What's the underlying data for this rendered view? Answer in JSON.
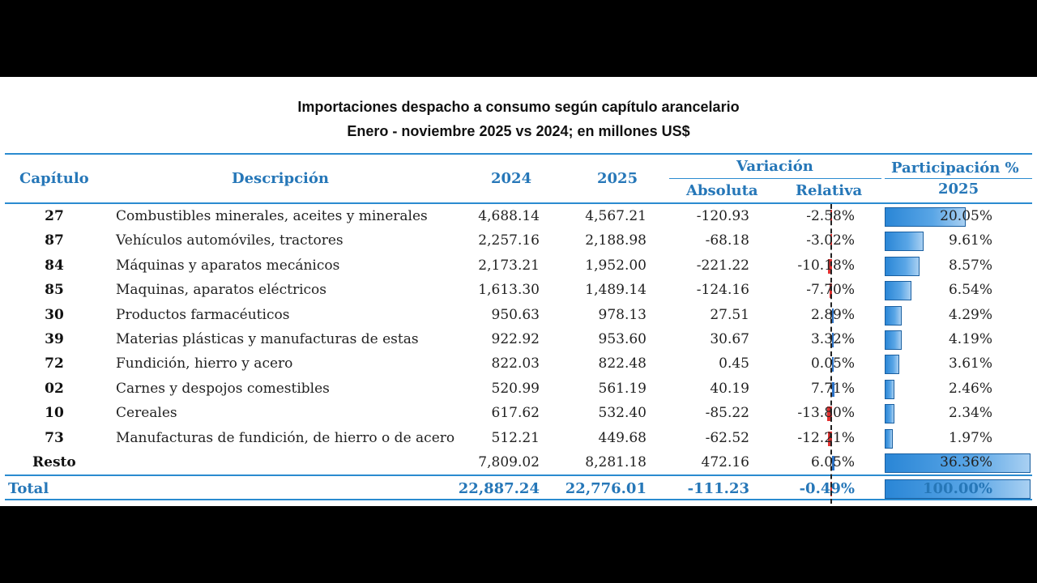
{
  "title_line1": "Importaciones despacho a consumo según capítulo arancelario",
  "title_line2": "Enero - noviembre 2025 vs 2024; en millones US$",
  "headers": {
    "capitulo": "Capítulo",
    "descripcion": "Descripción",
    "y2024": "2024",
    "y2025": "2025",
    "variacion": "Variación",
    "absoluta": "Absoluta",
    "relativa": "Relativa",
    "participacion": "Participación %",
    "participacion_year": "2025"
  },
  "rows": [
    {
      "cap": "27",
      "desc": "Combustibles minerales, aceites y minerales",
      "v2024": "4,688.14",
      "v2025": "4,567.21",
      "abs": "-120.93",
      "rel": "-2.58%",
      "rel_value": -2.58,
      "par": "20.05%",
      "par_value": 20.05
    },
    {
      "cap": "87",
      "desc": "Vehículos automóviles, tractores",
      "v2024": "2,257.16",
      "v2025": "2,188.98",
      "abs": "-68.18",
      "rel": "-3.02%",
      "rel_value": -3.02,
      "par": "9.61%",
      "par_value": 9.61
    },
    {
      "cap": "84",
      "desc": "Máquinas y aparatos mecánicos",
      "v2024": "2,173.21",
      "v2025": "1,952.00",
      "abs": "-221.22",
      "rel": "-10.18%",
      "rel_value": -10.18,
      "par": "8.57%",
      "par_value": 8.57
    },
    {
      "cap": "85",
      "desc": "Maquinas, aparatos eléctricos",
      "v2024": "1,613.30",
      "v2025": "1,489.14",
      "abs": "-124.16",
      "rel": "-7.70%",
      "rel_value": -7.7,
      "par": "6.54%",
      "par_value": 6.54
    },
    {
      "cap": "30",
      "desc": "Productos farmacéuticos",
      "v2024": "950.63",
      "v2025": "978.13",
      "abs": "27.51",
      "rel": "2.89%",
      "rel_value": 2.89,
      "par": "4.29%",
      "par_value": 4.29
    },
    {
      "cap": "39",
      "desc": "Materias plásticas y manufacturas de estas",
      "v2024": "922.92",
      "v2025": "953.60",
      "abs": "30.67",
      "rel": "3.32%",
      "rel_value": 3.32,
      "par": "4.19%",
      "par_value": 4.19
    },
    {
      "cap": "72",
      "desc": "Fundición, hierro y acero",
      "v2024": "822.03",
      "v2025": "822.48",
      "abs": "0.45",
      "rel": "0.05%",
      "rel_value": 0.05,
      "par": "3.61%",
      "par_value": 3.61
    },
    {
      "cap": "02",
      "desc": "Carnes y despojos comestibles",
      "v2024": "520.99",
      "v2025": "561.19",
      "abs": "40.19",
      "rel": "7.71%",
      "rel_value": 7.71,
      "par": "2.46%",
      "par_value": 2.46
    },
    {
      "cap": "10",
      "desc": "Cereales",
      "v2024": "617.62",
      "v2025": "532.40",
      "abs": "-85.22",
      "rel": "-13.80%",
      "rel_value": -13.8,
      "par": "2.34%",
      "par_value": 2.34
    },
    {
      "cap": "73",
      "desc": "Manufacturas de fundición, de hierro o de acero",
      "v2024": "512.21",
      "v2025": "449.68",
      "abs": "-62.52",
      "rel": "-12.21%",
      "rel_value": -12.21,
      "par": "1.97%",
      "par_value": 1.97
    },
    {
      "cap": "Resto",
      "desc": "",
      "v2024": "7,809.02",
      "v2025": "8,281.18",
      "abs": "472.16",
      "rel": "6.05%",
      "rel_value": 6.05,
      "par": "36.36%",
      "par_value": 36.36
    }
  ],
  "total": {
    "cap": "Total",
    "v2024": "22,887.24",
    "v2025": "22,776.01",
    "abs": "-111.23",
    "rel": "-0.49%",
    "rel_value": -0.49,
    "par": "100.00%",
    "par_value": 100.0
  },
  "colors": {
    "header_blue": "#2677b8",
    "line_blue": "#2a8bd0",
    "bar_blue": "#2a86d6",
    "neg_red": "#e03030"
  }
}
